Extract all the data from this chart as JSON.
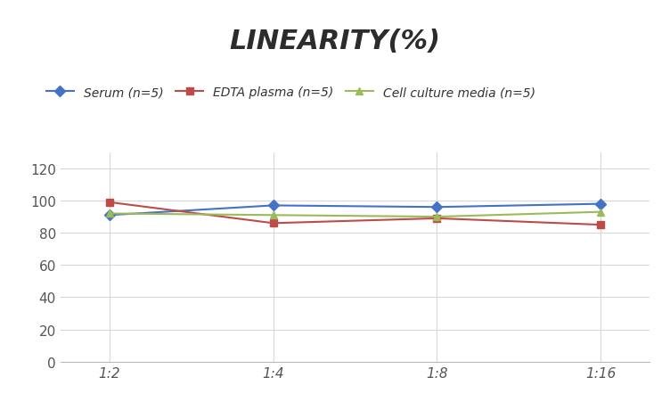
{
  "title": "LINEARITY(%)",
  "x_labels": [
    "1:2",
    "1:4",
    "1:8",
    "1:16"
  ],
  "x_positions": [
    0,
    1,
    2,
    3
  ],
  "series": [
    {
      "label": "Serum (n=5)",
      "values": [
        91,
        97,
        96,
        98
      ],
      "color": "#4472C4",
      "marker": "D",
      "linewidth": 1.5,
      "markersize": 6
    },
    {
      "label": "EDTA plasma (n=5)",
      "values": [
        99,
        86,
        89,
        85
      ],
      "color": "#BE4B48",
      "marker": "s",
      "linewidth": 1.5,
      "markersize": 6
    },
    {
      "label": "Cell culture media (n=5)",
      "values": [
        92,
        91,
        90,
        93
      ],
      "color": "#9BBB59",
      "marker": "^",
      "linewidth": 1.5,
      "markersize": 6
    }
  ],
  "ylim": [
    0,
    130
  ],
  "yticks": [
    0,
    20,
    40,
    60,
    80,
    100,
    120
  ],
  "background_color": "#ffffff",
  "grid_color": "#d8d8d8",
  "title_fontsize": 22,
  "legend_fontsize": 10,
  "tick_fontsize": 11
}
